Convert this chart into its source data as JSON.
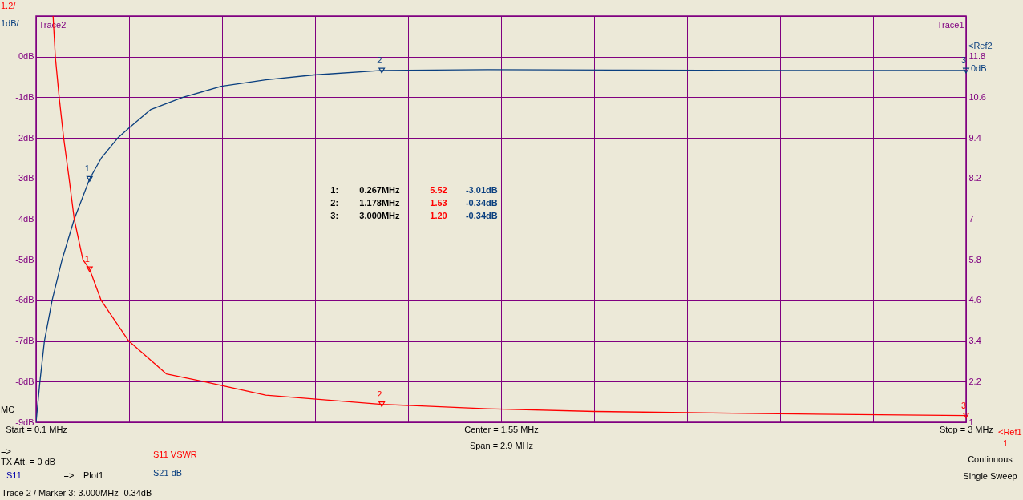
{
  "chart_data": {
    "type": "line",
    "ylabel": "Trace2",
    "y2label": "Trace1",
    "xlim": [
      0.1,
      3.0
    ],
    "xticks": [
      {
        "value": 0.1,
        "label": "Start = 0.1 MHz"
      },
      {
        "value": 0.39,
        "label": null
      },
      {
        "value": 0.68,
        "label": null
      },
      {
        "value": 0.97,
        "label": null
      },
      {
        "value": 1.26,
        "label": null
      },
      {
        "value": 1.55,
        "label": "Center = 1.55 MHz"
      },
      {
        "value": 1.84,
        "label": null
      },
      {
        "value": 2.13,
        "label": null
      },
      {
        "value": 2.42,
        "label": null
      },
      {
        "value": 2.71,
        "label": null
      },
      {
        "value": 3.0,
        "label": "Stop = 3 MHz"
      }
    ],
    "ylim": [
      -9,
      1
    ],
    "yticks": [
      {
        "value": -9,
        "label": "-9dB"
      },
      {
        "value": -8,
        "label": "-8dB"
      },
      {
        "value": -7,
        "label": "-7dB"
      },
      {
        "value": -6,
        "label": "-6dB"
      },
      {
        "value": -5,
        "label": "-5dB"
      },
      {
        "value": -4,
        "label": "-4dB"
      },
      {
        "value": -3,
        "label": "-3dB"
      },
      {
        "value": -2,
        "label": "-2dB"
      },
      {
        "value": -1,
        "label": "-1dB"
      },
      {
        "value": 0,
        "label": "0dB"
      },
      {
        "value": 1,
        "label": null
      }
    ],
    "y2lim": [
      1.0,
      13.0
    ],
    "y2ticks": [
      1,
      2.2,
      3.4,
      4.6,
      5.8,
      7,
      8.2,
      9.4,
      10.6,
      11.8
    ],
    "grid": true,
    "line_style": "solid",
    "series": [
      {
        "type": "line",
        "color": "#0a3f7f",
        "x": [
          0.1,
          0.112,
          0.126,
          0.15,
          0.181,
          0.219,
          0.267,
          0.303,
          0.355,
          0.389,
          0.458,
          0.558,
          0.678,
          0.816,
          0.966,
          1.178,
          1.508,
          1.938,
          2.415,
          3.0
        ],
        "values": [
          -9.0,
          -8.0,
          -7.0,
          -6.0,
          -5.0,
          -4.0,
          -3.01,
          -2.5,
          -2.0,
          -1.76,
          -1.3,
          -1.0,
          -0.73,
          -0.57,
          -0.45,
          -0.34,
          -0.32,
          -0.33,
          -0.34,
          -0.34
        ]
      },
      {
        "type": "line",
        "axis": "y2",
        "color": "#ff0000",
        "x": [
          0.153,
          0.16,
          0.172,
          0.186,
          0.203,
          0.219,
          0.246,
          0.267,
          0.303,
          0.389,
          0.506,
          0.625,
          0.816,
          1.178,
          1.508,
          1.842,
          2.415,
          3.0
        ],
        "values": [
          13.0,
          11.8,
          10.6,
          9.4,
          8.2,
          7.0,
          5.8,
          5.52,
          4.6,
          3.4,
          2.43,
          2.2,
          1.8,
          1.53,
          1.4,
          1.32,
          1.25,
          1.2
        ]
      },
      {
        "type": "scatter",
        "marker": "triangle",
        "color": "#0a3f7f",
        "x": [
          0.267,
          1.178,
          3.0
        ],
        "values": [
          -3.01,
          -0.34,
          -0.34
        ]
      },
      {
        "type": "scatter",
        "marker": "triangle",
        "axis": "y2",
        "color": "#ff0000",
        "x": [
          0.267,
          1.178,
          3.0
        ],
        "values": [
          5.52,
          1.53,
          1.2
        ]
      }
    ],
    "annotations": [
      "1.2/",
      "1dB/",
      "MC",
      "Span = 2.9 MHz",
      "<Ref2",
      "0dB",
      "<Ref1",
      "1",
      "=>",
      "TX Att.  = 0 dB",
      "S11",
      "=>",
      "Plot1",
      "S11  VSWR",
      "S21  dB",
      "Continuous",
      "Single Sweep",
      "Trace 2 / Marker 3:   3.000MHz   -0.34dB",
      "1:",
      "0.267MHz",
      "5.52",
      "-3.01dB",
      "2:",
      "1.178MHz",
      "1.53",
      "-0.34dB",
      "3:",
      "3.000MHz",
      "1.20",
      "-0.34dB",
      {
        "text": "1",
        "x": 0.267,
        "y": -3.01
      },
      {
        "text": "2",
        "x": 1.178,
        "y": -0.34
      },
      {
        "text": "3",
        "x": 3.0,
        "y": -0.34
      },
      "1",
      "2",
      "3"
    ]
  }
}
